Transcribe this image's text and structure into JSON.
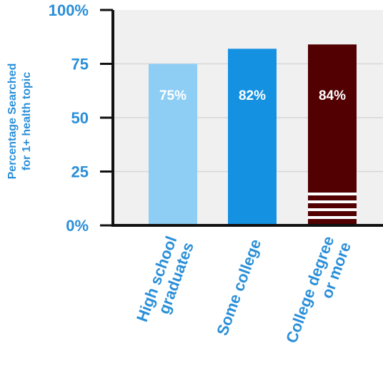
{
  "chart_data": {
    "type": "bar",
    "categories": [
      "High school graduates",
      "Some college",
      "College degree or more"
    ],
    "category_lines": [
      [
        "High school",
        "graduates"
      ],
      [
        "Some college"
      ],
      [
        "College degree",
        "or more"
      ]
    ],
    "values": [
      75,
      82,
      84
    ],
    "data_labels": [
      "75%",
      "82%",
      "84%"
    ],
    "ylabel_lines": [
      "Percentage Searched",
      "for 1+ health topic"
    ],
    "xlabel": "",
    "ylim": [
      0,
      100
    ],
    "yticks": [
      {
        "value": 0,
        "label": "0%"
      },
      {
        "value": 25,
        "label": "25"
      },
      {
        "value": 50,
        "label": "50"
      },
      {
        "value": 75,
        "label": "75"
      },
      {
        "value": 100,
        "label": "100%"
      }
    ],
    "grid": true,
    "colors": {
      "bars": [
        "#8ecef5",
        "#1591e2",
        "#520002"
      ],
      "axis_text": "#2a8fd8",
      "axis_line": "#111111",
      "plot_bg": "#f0f0f0",
      "grid": "#d6d6d6",
      "stripe": "#ffffff"
    }
  }
}
